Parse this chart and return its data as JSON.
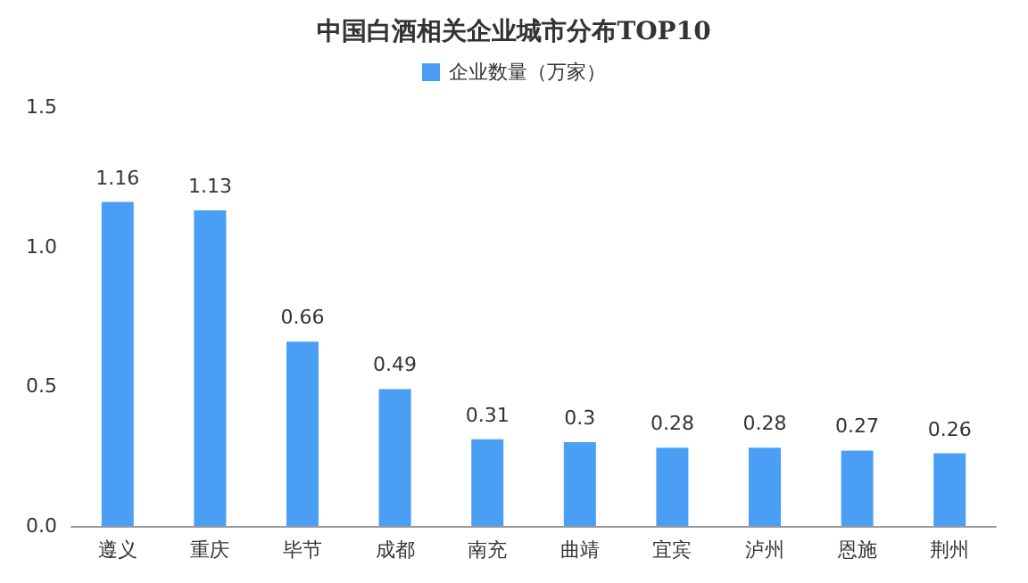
{
  "chart_data": {
    "type": "bar",
    "title": "中国白酒相关企业城市分布TOP10",
    "categories": [
      "遵义",
      "重庆",
      "毕节",
      "成都",
      "南充",
      "曲靖",
      "宜宾",
      "泸州",
      "恩施",
      "荆州"
    ],
    "series": [
      {
        "name": "企业数量（万家）",
        "color": "#4a9ff5",
        "values": [
          1.16,
          1.13,
          0.66,
          0.49,
          0.31,
          0.3,
          0.28,
          0.28,
          0.27,
          0.26
        ]
      }
    ],
    "ylim": [
      0,
      1.5
    ],
    "yticks": [
      {
        "value": 0,
        "label": "0.0"
      },
      {
        "value": 0.5,
        "label": "0.5"
      },
      {
        "value": 1,
        "label": "1.0"
      },
      {
        "value": 1.5,
        "label": "1.5"
      }
    ],
    "grid": false,
    "legend": "top",
    "data_labels": true
  }
}
